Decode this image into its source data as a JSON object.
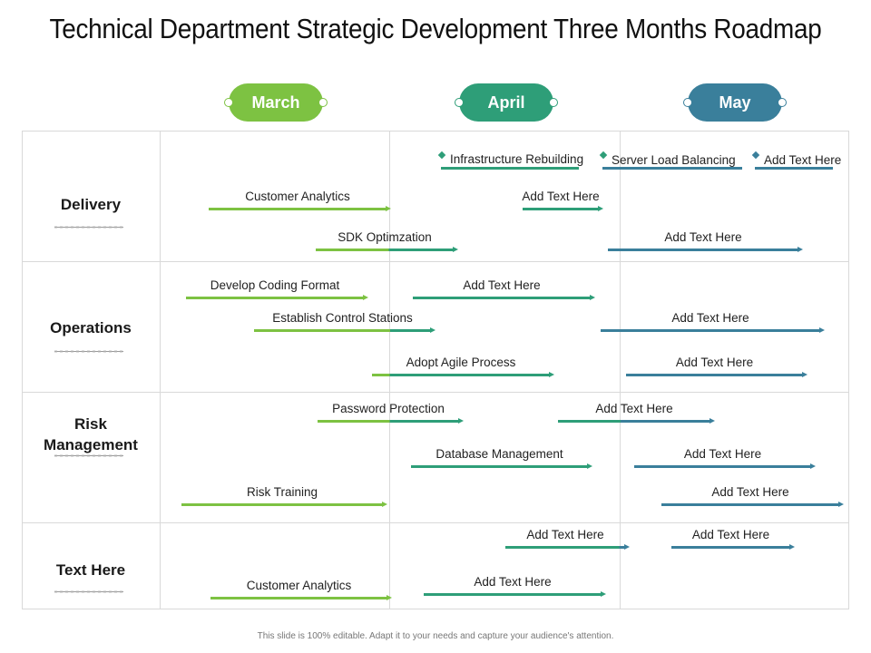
{
  "title": "Technical Department Strategic Development Three Months Roadmap",
  "months": [
    {
      "label": "March",
      "color": "#7dc242"
    },
    {
      "label": "April",
      "color": "#2e9e78"
    },
    {
      "label": "May",
      "color": "#3a7f9b"
    }
  ],
  "rows": [
    "Delivery",
    "Operations",
    "Risk Management",
    "Text Here"
  ],
  "tasks": {
    "t1": "Infrastructure Rebuilding",
    "t2": "Server Load Balancing",
    "t3": "Add Text Here",
    "t4": "Customer Analytics",
    "t5": "Add Text Here",
    "t6": "SDK Optimzation",
    "t7": "Add Text Here",
    "t8": "Develop Coding Format",
    "t9": "Add Text Here",
    "t10": "Establish Control Stations",
    "t11": "Add Text Here",
    "t12": "Adopt Agile Process",
    "t13": "Add Text Here",
    "t14": "Password Protection",
    "t15": "Add Text Here",
    "t16": "Database Management",
    "t17": "Add Text Here",
    "t18": "Risk Training",
    "t19": "Add Text Here",
    "t20": "Add Text Here",
    "t21": "Add Text Here",
    "t22": "Customer Analytics",
    "t23": "Add Text Here"
  },
  "footer": "This slide is 100% editable. Adapt it to your needs and capture your audience's attention."
}
